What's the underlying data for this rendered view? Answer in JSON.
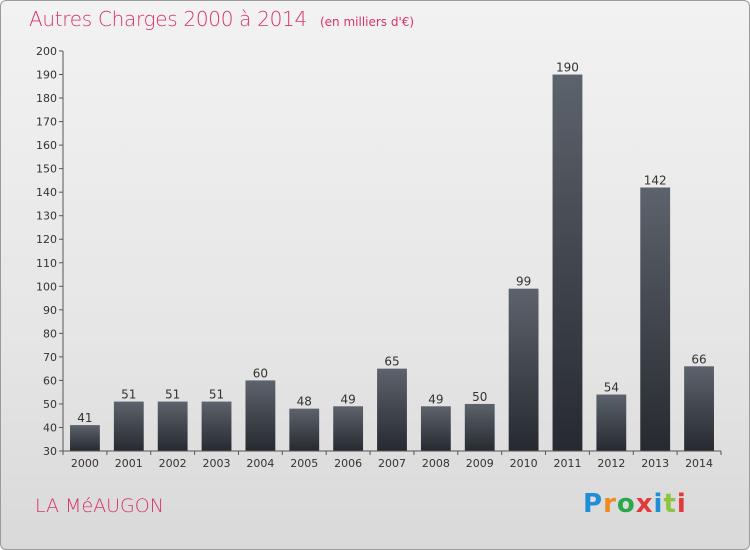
{
  "header": {
    "title": "Autres Charges 2000 à 2014",
    "subtitle": "(en milliers d'€)"
  },
  "footer": {
    "commune": "LA MéAUGON",
    "logo_letters": [
      "P",
      "r",
      "o",
      "x",
      "i",
      "t",
      "i"
    ],
    "logo_colors": [
      "#1e8fd6",
      "#f08a24",
      "#2aa84a",
      "#e23a3a",
      "#1e8fd6",
      "#8cc63f",
      "#e23a3a"
    ]
  },
  "colors": {
    "bar_top": "#5d636c",
    "bar_bottom": "#262a30",
    "axis": "#555555",
    "grid_tick": "#555555"
  },
  "chart_data": {
    "type": "bar",
    "title": "Autres Charges 2000 à 2014",
    "categories": [
      "2000",
      "2001",
      "2002",
      "2003",
      "2004",
      "2005",
      "2006",
      "2007",
      "2008",
      "2009",
      "2010",
      "2011",
      "2012",
      "2013",
      "2014"
    ],
    "values": [
      41,
      51,
      51,
      51,
      60,
      48,
      49,
      65,
      49,
      50,
      99,
      190,
      54,
      142,
      66
    ],
    "ylim": [
      30,
      200
    ],
    "yticks": [
      30,
      40,
      50,
      60,
      70,
      80,
      90,
      100,
      110,
      120,
      130,
      140,
      150,
      160,
      170,
      180,
      190,
      200
    ],
    "xlabel": "",
    "ylabel": "",
    "grid": false,
    "data_labels": true
  }
}
